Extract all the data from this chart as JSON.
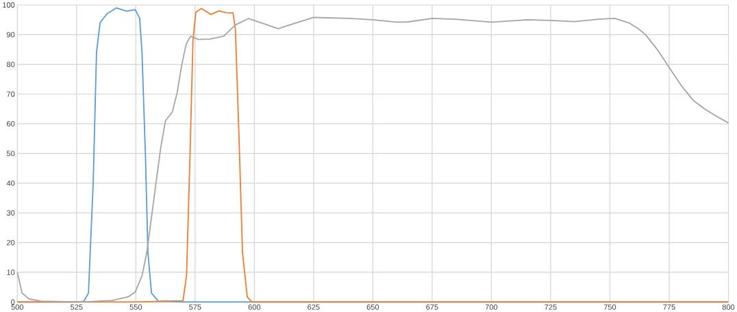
{
  "chart_data": {
    "type": "line",
    "xlim": [
      500,
      800
    ],
    "ylim": [
      0,
      100
    ],
    "xticks": [
      500,
      525,
      550,
      575,
      600,
      625,
      650,
      675,
      700,
      725,
      750,
      775,
      800
    ],
    "yticks": [
      0,
      10,
      20,
      30,
      40,
      50,
      60,
      70,
      80,
      90,
      100
    ],
    "grid": true,
    "marker": "none",
    "line_style": "solid",
    "series": [
      {
        "color": "#5b9bd5",
        "x": [
          500,
          525,
          528,
          530,
          532,
          533.4,
          534.9,
          537.8,
          541.8,
          546.2,
          549.7,
          551.6,
          552.6,
          554.1,
          555.1,
          556.6,
          559.5,
          570,
          600,
          700,
          800
        ],
        "values": [
          0,
          0,
          0.2,
          3,
          40,
          84,
          94,
          97,
          99,
          97.9,
          98.4,
          95.6,
          84,
          48,
          16.6,
          3,
          0.3,
          0,
          0,
          0,
          0
        ]
      },
      {
        "color": "#ed7d31",
        "x": [
          500,
          550,
          569.9,
          571.4,
          572.8,
          574.1,
          575.3,
          577.7,
          581.7,
          585.1,
          588.1,
          591,
          592,
          593.5,
          595,
          597,
          598.9,
          650,
          700,
          800
        ],
        "values": [
          0,
          0,
          0.4,
          9,
          48,
          88,
          97.6,
          98.8,
          96.8,
          98,
          97.4,
          97.3,
          91.7,
          56,
          16.6,
          1.7,
          0,
          0,
          0,
          0
        ]
      },
      {
        "color": "#a5a5a5",
        "x": [
          500,
          502,
          505,
          510,
          520,
          530,
          540,
          546.7,
          549.7,
          552.6,
          554.6,
          556.6,
          558.5,
          560.5,
          562.5,
          565.4,
          567.4,
          569.4,
          571.3,
          573.1,
          576.3,
          581.2,
          587.1,
          592,
          597.5,
          602.9,
          610,
          625,
          640,
          650,
          660,
          665,
          675,
          685,
          700,
          715,
          725,
          735,
          745,
          752,
          758,
          762,
          765,
          770,
          775,
          780,
          785,
          790,
          795,
          800
        ],
        "values": [
          10,
          3,
          1,
          0.3,
          0.1,
          0.1,
          0.5,
          1.7,
          3.3,
          8.8,
          16.6,
          28.5,
          40,
          52,
          61,
          64,
          70.4,
          80,
          87,
          89.5,
          88.4,
          88.5,
          89.5,
          93.3,
          95.4,
          94,
          92,
          95.8,
          95.5,
          95,
          94.2,
          94.3,
          95.5,
          95.2,
          94.2,
          95,
          94.8,
          94.4,
          95.2,
          95.5,
          94,
          92,
          90,
          85,
          79,
          73,
          68,
          65,
          62.5,
          60.3
        ]
      }
    ]
  }
}
